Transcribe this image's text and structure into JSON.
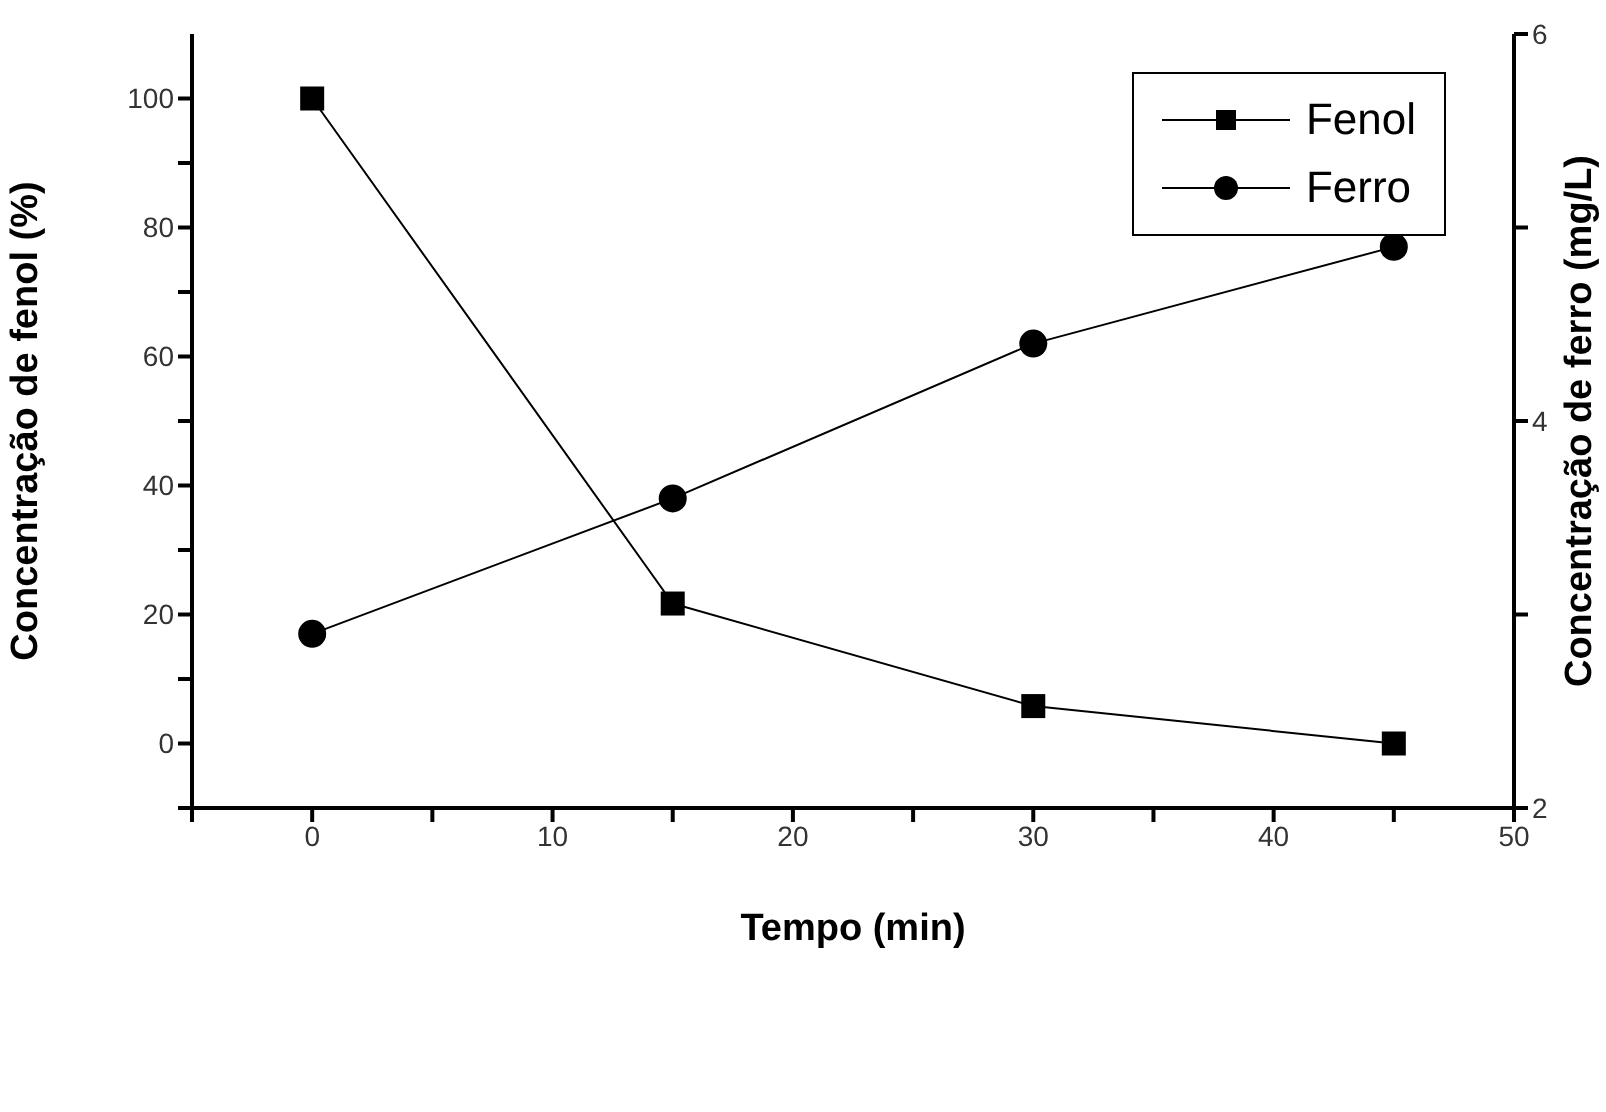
{
  "chart_data": {
    "type": "line",
    "xlabel": "Tempo (min)",
    "ylabel": "Concentração de fenol (%)",
    "y2label": "Concentração de ferro (mg/L)",
    "x": [
      0,
      15,
      30,
      45
    ],
    "series": [
      {
        "name": "Fenol",
        "color": "#000000",
        "marker": "square",
        "values": [
          100,
          21.7,
          5.8,
          0
        ]
      },
      {
        "name": "Ferro",
        "color": "#000000",
        "marker": "circle",
        "axis": "y2",
        "values": [
          2.9,
          3.6,
          4.4,
          4.9
        ]
      }
    ],
    "xlim": [
      -5,
      50
    ],
    "xticks": [
      {
        "value": -5,
        "label": null
      },
      0,
      {
        "value": 5,
        "label": null
      },
      10,
      {
        "value": 15,
        "label": null
      },
      20,
      {
        "value": 25,
        "label": null
      },
      30,
      {
        "value": 35,
        "label": null
      },
      40,
      {
        "value": 45,
        "label": null
      },
      50
    ],
    "ylim": [
      -10,
      110
    ],
    "yticks": [
      {
        "value": -10,
        "label": null
      },
      0,
      {
        "value": 10,
        "label": null
      },
      20,
      {
        "value": 30,
        "label": null
      },
      40,
      {
        "value": 50,
        "label": null
      },
      60,
      {
        "value": 70,
        "label": null
      },
      80,
      {
        "value": 90,
        "label": null
      },
      100
    ],
    "y2lim": [
      2,
      6
    ],
    "y2ticks": [
      2,
      {
        "value": 3,
        "label": null
      },
      4,
      {
        "value": 5,
        "label": null
      },
      6
    ],
    "grid": false,
    "legend": "top right"
  }
}
